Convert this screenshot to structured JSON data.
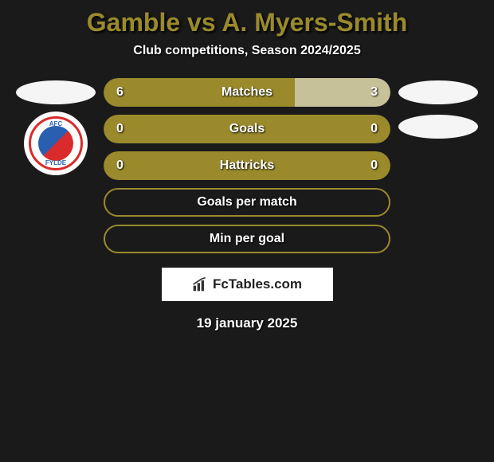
{
  "title_color": "#9a8a2c",
  "title": "Gamble vs A. Myers-Smith",
  "subtitle": "Club competitions, Season 2024/2025",
  "stats": [
    {
      "type": "split",
      "label": "Matches",
      "left_value": "6",
      "right_value": "3",
      "left_pct": 66.7,
      "right_pct": 33.3,
      "left_color": "#9a8a2c",
      "right_color": "#c7c19a"
    },
    {
      "type": "split",
      "label": "Goals",
      "left_value": "0",
      "right_value": "0",
      "left_pct": 50,
      "right_pct": 50,
      "left_color": "#9a8a2c",
      "right_color": "#9a8a2c"
    },
    {
      "type": "split",
      "label": "Hattricks",
      "left_value": "0",
      "right_value": "0",
      "left_pct": 50,
      "right_pct": 50,
      "left_color": "#9a8a2c",
      "right_color": "#9a8a2c"
    },
    {
      "type": "full",
      "label": "Goals per match",
      "border_color": "#9a8a2c",
      "bg_color": "transparent"
    },
    {
      "type": "full",
      "label": "Min per goal",
      "border_color": "#9a8a2c",
      "bg_color": "transparent"
    }
  ],
  "club_badge": {
    "top_text": "AFC",
    "bottom_text": "FYLDE",
    "ring_color": "#d92b2b",
    "center_blue": "#2a5fb0",
    "center_red": "#d92b2b"
  },
  "logo_text": "FcTables.com",
  "date": "19 january 2025",
  "colors": {
    "background": "#1a1a1a",
    "text": "#ffffff",
    "primary": "#9a8a2c",
    "primary_light": "#c7c19a",
    "badge_white": "#f5f5f5"
  }
}
